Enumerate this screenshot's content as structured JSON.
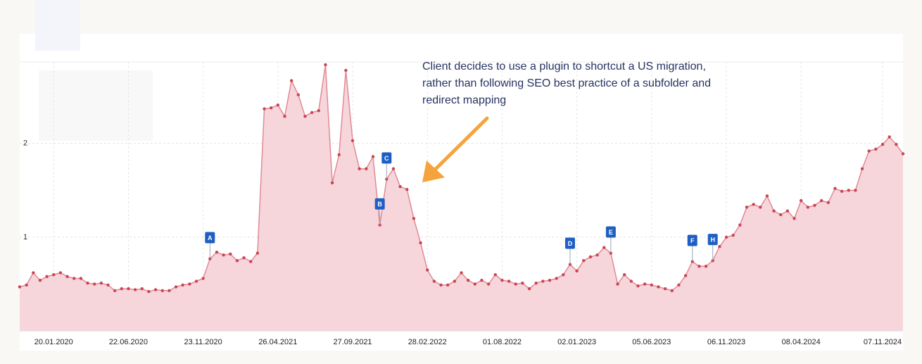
{
  "chart_data": {
    "type": "area",
    "annotation": {
      "lines": [
        "Client decides to use a plugin to shortcut a US migration,",
        "rather than following SEO best practice of a subfolder and",
        "redirect mapping"
      ]
    },
    "categories": [
      null,
      null,
      null,
      null,
      null,
      "20.01.2020",
      null,
      null,
      null,
      null,
      null,
      null,
      null,
      null,
      null,
      null,
      "22.06.2020",
      null,
      null,
      null,
      null,
      null,
      null,
      null,
      null,
      null,
      null,
      "23.11.2020",
      null,
      null,
      null,
      null,
      null,
      null,
      null,
      null,
      null,
      null,
      "26.04.2021",
      null,
      null,
      null,
      null,
      null,
      null,
      null,
      null,
      null,
      null,
      "27.09.2021",
      null,
      null,
      null,
      null,
      null,
      null,
      null,
      null,
      null,
      null,
      "28.02.2022",
      null,
      null,
      null,
      null,
      null,
      null,
      null,
      null,
      null,
      null,
      "01.08.2022",
      null,
      null,
      null,
      null,
      null,
      null,
      null,
      null,
      null,
      null,
      "02.01.2023",
      null,
      null,
      null,
      null,
      null,
      null,
      null,
      null,
      null,
      null,
      "05.06.2023",
      null,
      null,
      null,
      null,
      null,
      null,
      null,
      null,
      null,
      null,
      "06.11.2023",
      null,
      null,
      null,
      null,
      null,
      null,
      null,
      null,
      null,
      null,
      "08.04.2024",
      null,
      null,
      null,
      null,
      null,
      null,
      null,
      null,
      null,
      null,
      null,
      "07.11.2024",
      null,
      null,
      null
    ],
    "values": [
      0.47,
      0.49,
      0.62,
      0.54,
      0.58,
      0.6,
      0.62,
      0.58,
      0.56,
      0.56,
      0.51,
      0.5,
      0.51,
      0.49,
      0.43,
      0.45,
      0.45,
      0.44,
      0.45,
      0.42,
      0.44,
      0.43,
      0.43,
      0.47,
      0.49,
      0.5,
      0.53,
      0.56,
      0.77,
      0.84,
      0.81,
      0.82,
      0.75,
      0.78,
      0.74,
      0.83,
      2.37,
      2.38,
      2.41,
      2.29,
      2.67,
      2.52,
      2.29,
      2.33,
      2.35,
      2.84,
      1.58,
      1.88,
      2.78,
      2.03,
      1.73,
      1.73,
      1.86,
      1.13,
      1.62,
      1.73,
      1.54,
      1.51,
      1.2,
      0.94,
      0.65,
      0.53,
      0.49,
      0.49,
      0.53,
      0.62,
      0.54,
      0.5,
      0.54,
      0.5,
      0.6,
      0.54,
      0.53,
      0.5,
      0.51,
      0.45,
      0.51,
      0.53,
      0.54,
      0.56,
      0.6,
      0.71,
      0.64,
      0.75,
      0.79,
      0.81,
      0.89,
      0.83,
      0.5,
      0.6,
      0.53,
      0.48,
      0.5,
      0.49,
      0.47,
      0.45,
      0.43,
      0.49,
      0.59,
      0.74,
      0.69,
      0.69,
      0.75,
      0.9,
      1.0,
      1.02,
      1.13,
      1.32,
      1.35,
      1.32,
      1.44,
      1.28,
      1.24,
      1.28,
      1.2,
      1.39,
      1.32,
      1.34,
      1.39,
      1.37,
      1.52,
      1.49,
      1.5,
      1.5,
      1.73,
      1.92,
      1.94,
      1.99,
      2.07,
      1.99,
      1.89
    ],
    "color": "#cc4452",
    "markers": [
      {
        "label": "A",
        "index": 28
      },
      {
        "label": "B",
        "index": 53
      },
      {
        "label": "C",
        "index": 54
      },
      {
        "label": "D",
        "index": 81
      },
      {
        "label": "E",
        "index": 87
      },
      {
        "label": "F",
        "index": 99
      },
      {
        "label": "H",
        "index": 102
      }
    ],
    "ylim": [
      0,
      2.87
    ],
    "yticks": [
      1,
      2
    ],
    "grid": true
  }
}
